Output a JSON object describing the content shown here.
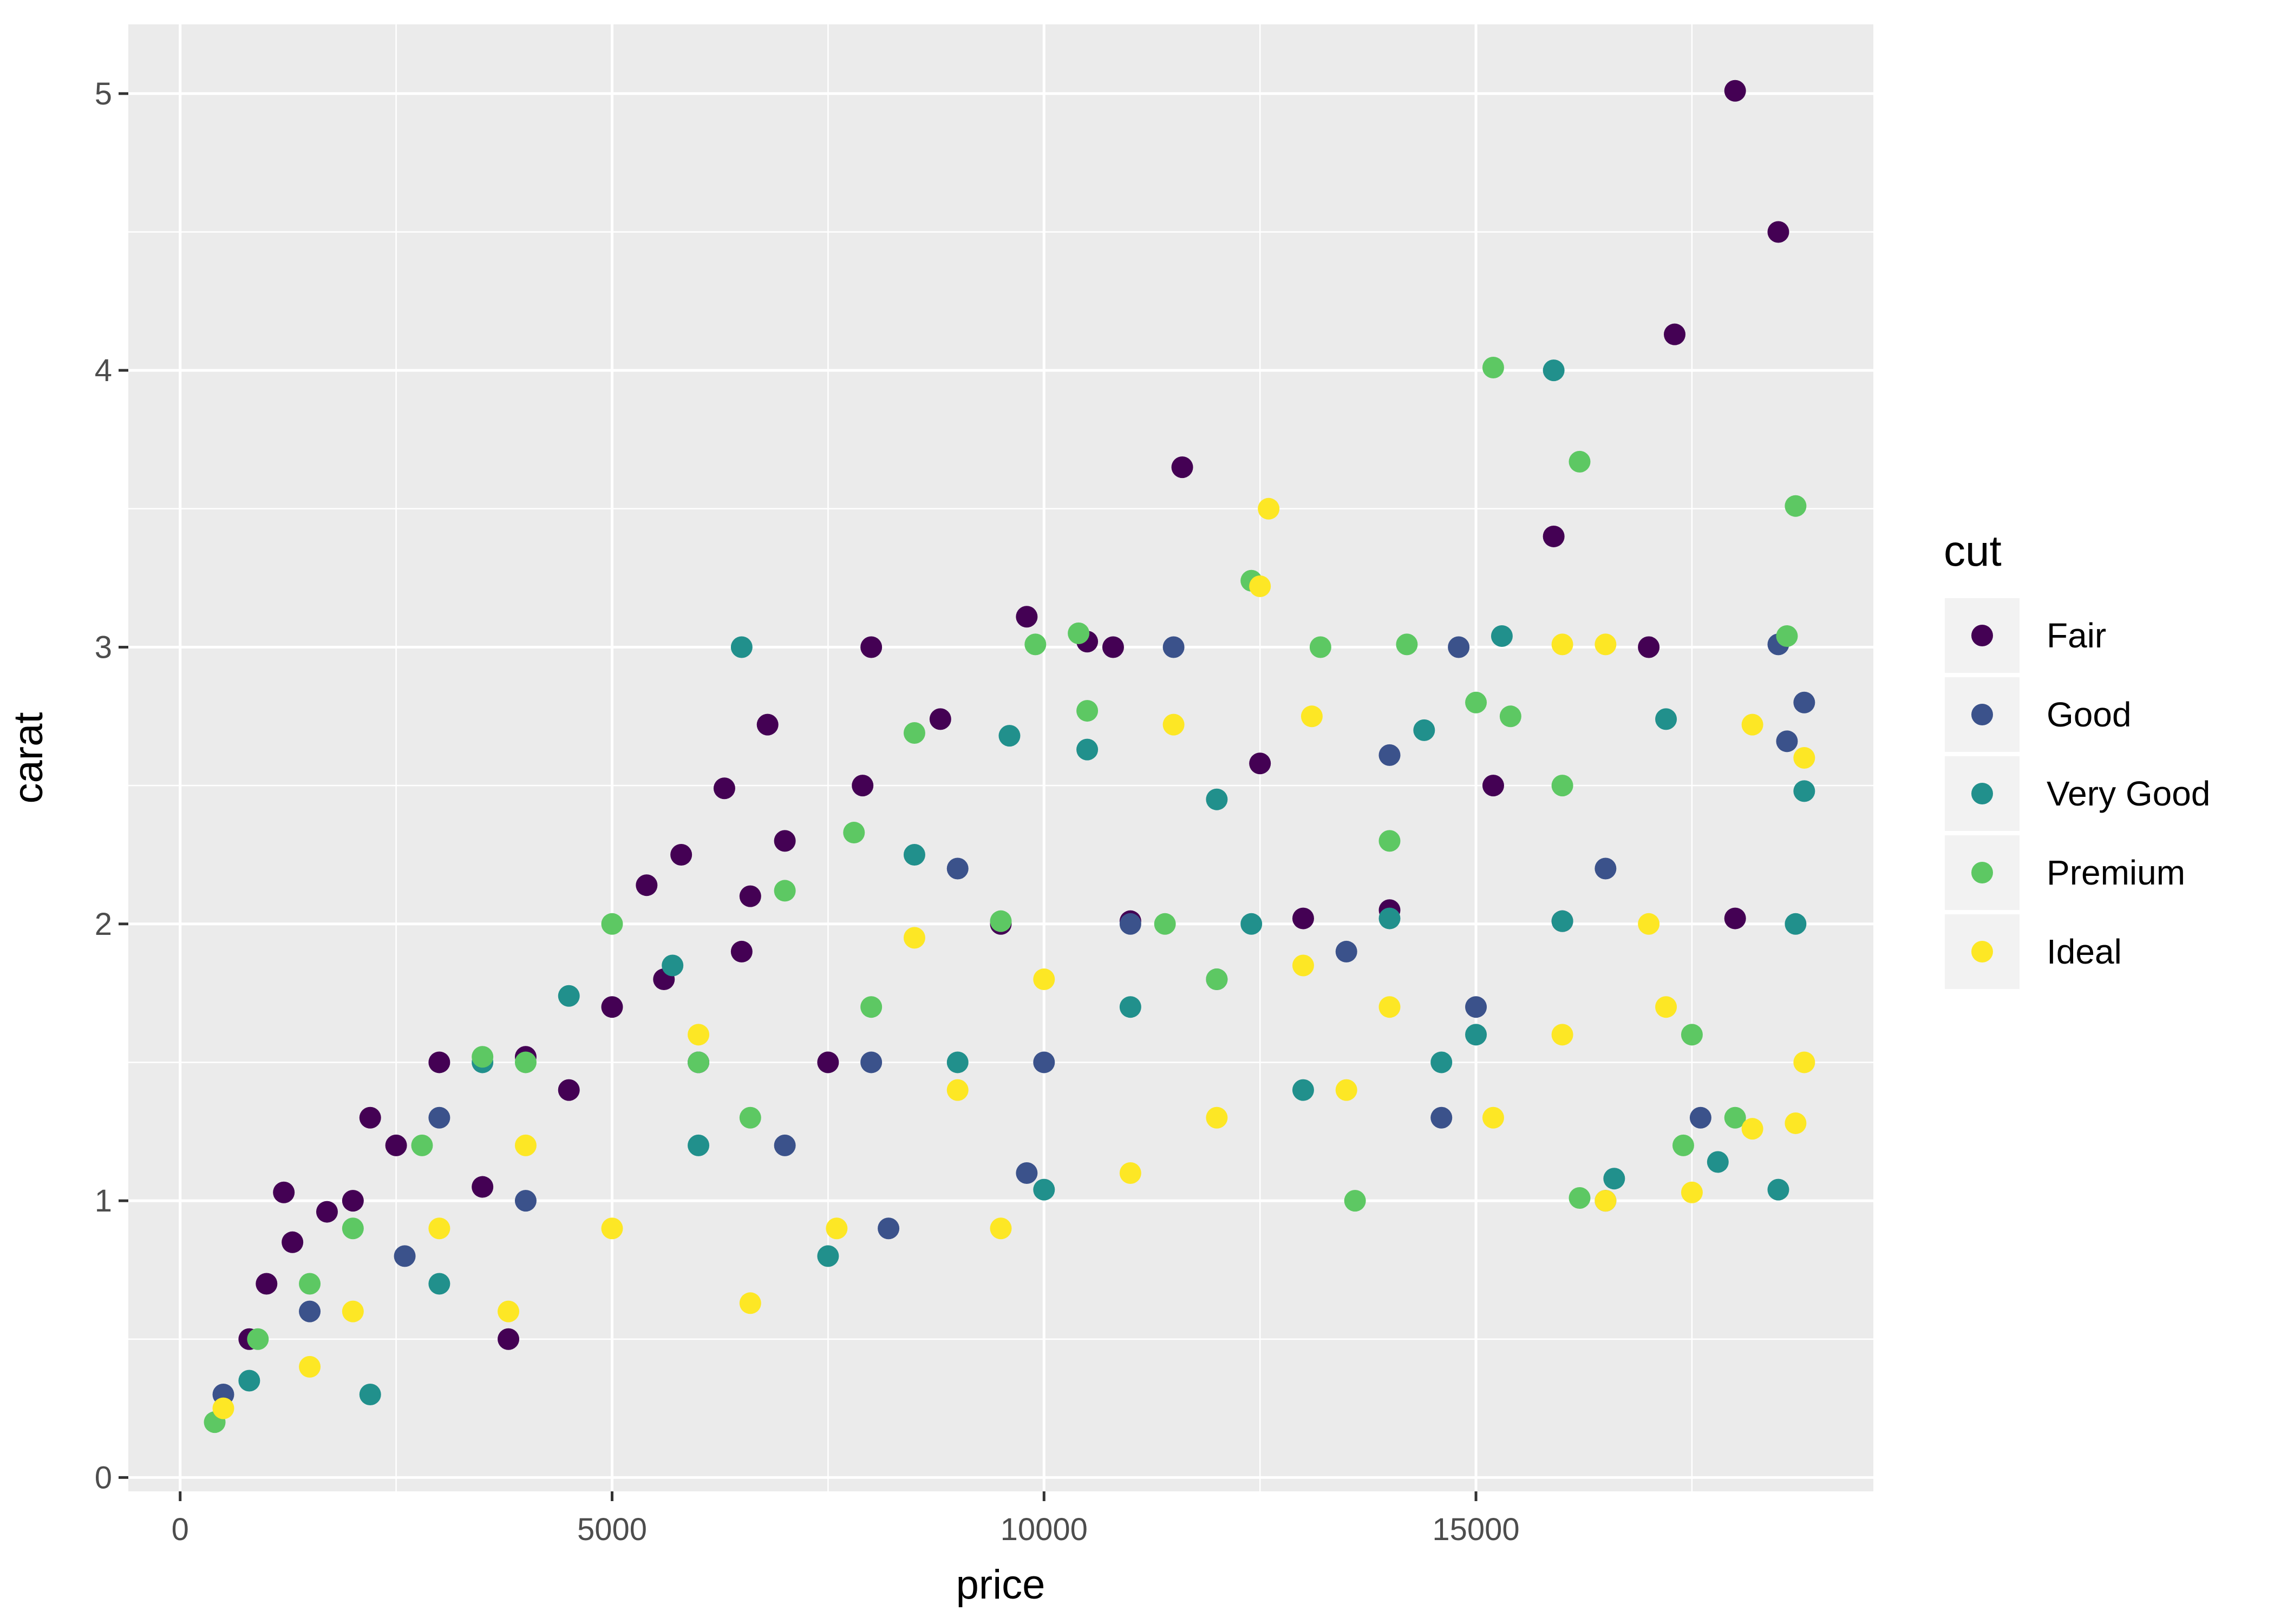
{
  "chart_data": {
    "type": "scatter",
    "title": "",
    "xlabel": "price",
    "ylabel": "carat",
    "xlim": [
      -600,
      19600
    ],
    "ylim": [
      -0.05,
      5.25
    ],
    "x_ticks": [
      0,
      5000,
      10000,
      15000
    ],
    "x_tick_labels": [
      "0",
      "5000",
      "10000",
      "15000"
    ],
    "y_ticks": [
      0,
      1,
      2,
      3,
      4,
      5
    ],
    "y_tick_labels": [
      "0",
      "1",
      "2",
      "3",
      "4",
      "5"
    ],
    "grid": true,
    "background": "#ebebeb",
    "legend": {
      "title": "cut",
      "placement": "right",
      "entries": [
        {
          "label": "Fair",
          "color": "#440154"
        },
        {
          "label": "Good",
          "color": "#3b528b"
        },
        {
          "label": "Very Good",
          "color": "#21908c"
        },
        {
          "label": "Premium",
          "color": "#5dc863"
        },
        {
          "label": "Ideal",
          "color": "#fde725"
        }
      ]
    },
    "series": [
      {
        "name": "Fair",
        "color": "#440154",
        "points": [
          [
            18000,
            5.01
          ],
          [
            18500,
            4.5
          ],
          [
            17300,
            4.13
          ],
          [
            11600,
            3.65
          ],
          [
            15900,
            3.4
          ],
          [
            9800,
            3.11
          ],
          [
            8000,
            3.0
          ],
          [
            10500,
            3.02
          ],
          [
            10800,
            3.0
          ],
          [
            6800,
            2.72
          ],
          [
            8800,
            2.74
          ],
          [
            6300,
            2.49
          ],
          [
            7000,
            2.3
          ],
          [
            5800,
            2.25
          ],
          [
            5400,
            2.14
          ],
          [
            6600,
            2.1
          ],
          [
            7900,
            2.5
          ],
          [
            12500,
            2.58
          ],
          [
            15200,
            2.5
          ],
          [
            17000,
            3.0
          ],
          [
            3000,
            1.5
          ],
          [
            4000,
            1.52
          ],
          [
            4500,
            1.4
          ],
          [
            5000,
            1.7
          ],
          [
            5600,
            1.8
          ],
          [
            2500,
            1.2
          ],
          [
            2000,
            1.0
          ],
          [
            1300,
            0.85
          ],
          [
            1000,
            0.7
          ],
          [
            800,
            0.5
          ],
          [
            3800,
            0.5
          ],
          [
            6500,
            1.9
          ],
          [
            9500,
            2.0
          ],
          [
            11000,
            2.01
          ],
          [
            13000,
            2.02
          ],
          [
            14000,
            2.05
          ],
          [
            16000,
            2.01
          ],
          [
            18000,
            2.02
          ],
          [
            6000,
            1.5
          ],
          [
            7500,
            1.5
          ],
          [
            1200,
            1.03
          ],
          [
            1700,
            0.96
          ],
          [
            2200,
            1.3
          ],
          [
            3500,
            1.05
          ]
        ]
      },
      {
        "name": "Good",
        "color": "#3b528b",
        "points": [
          [
            11500,
            3.0
          ],
          [
            14800,
            3.0
          ],
          [
            18500,
            3.01
          ],
          [
            18800,
            2.8
          ],
          [
            18600,
            2.66
          ],
          [
            14000,
            2.61
          ],
          [
            9000,
            2.2
          ],
          [
            16500,
            2.2
          ],
          [
            3000,
            1.3
          ],
          [
            4000,
            1.0
          ],
          [
            6000,
            1.5
          ],
          [
            8000,
            1.5
          ],
          [
            10000,
            1.5
          ],
          [
            12000,
            1.8
          ],
          [
            14600,
            1.3
          ],
          [
            16500,
            1.0
          ],
          [
            8200,
            0.9
          ],
          [
            1500,
            0.6
          ],
          [
            500,
            0.3
          ],
          [
            17600,
            1.3
          ],
          [
            15000,
            1.7
          ],
          [
            13500,
            1.9
          ],
          [
            11000,
            2.0
          ],
          [
            7000,
            1.2
          ],
          [
            2600,
            0.8
          ],
          [
            9800,
            1.1
          ]
        ]
      },
      {
        "name": "Very Good",
        "color": "#21908c",
        "points": [
          [
            15900,
            4.0
          ],
          [
            15300,
            3.04
          ],
          [
            6500,
            3.0
          ],
          [
            9600,
            2.68
          ],
          [
            10500,
            2.63
          ],
          [
            12000,
            2.45
          ],
          [
            14400,
            2.7
          ],
          [
            17200,
            2.74
          ],
          [
            18800,
            2.48
          ],
          [
            8500,
            2.25
          ],
          [
            5700,
            1.85
          ],
          [
            4500,
            1.74
          ],
          [
            3500,
            1.5
          ],
          [
            2200,
            0.3
          ],
          [
            7500,
            0.8
          ],
          [
            11000,
            1.7
          ],
          [
            13000,
            1.4
          ],
          [
            15000,
            1.6
          ],
          [
            17800,
            1.14
          ],
          [
            18500,
            1.04
          ],
          [
            16600,
            1.08
          ],
          [
            10000,
            1.04
          ],
          [
            6000,
            1.2
          ],
          [
            3000,
            0.7
          ],
          [
            800,
            0.35
          ],
          [
            12400,
            2.0
          ],
          [
            14000,
            2.02
          ],
          [
            16000,
            2.01
          ],
          [
            18700,
            2.0
          ],
          [
            9000,
            1.5
          ],
          [
            14600,
            1.5
          ]
        ]
      },
      {
        "name": "Premium",
        "color": "#5dc863",
        "points": [
          [
            15200,
            4.01
          ],
          [
            16200,
            3.67
          ],
          [
            18700,
            3.51
          ],
          [
            12400,
            3.24
          ],
          [
            13200,
            3.0
          ],
          [
            14200,
            3.01
          ],
          [
            9900,
            3.01
          ],
          [
            10400,
            3.05
          ],
          [
            15000,
            2.8
          ],
          [
            15400,
            2.75
          ],
          [
            8500,
            2.69
          ],
          [
            10500,
            2.77
          ],
          [
            18600,
            3.04
          ],
          [
            7000,
            2.12
          ],
          [
            5000,
            2.0
          ],
          [
            4000,
            1.5
          ],
          [
            3500,
            1.52
          ],
          [
            2800,
            1.2
          ],
          [
            2000,
            0.9
          ],
          [
            1500,
            0.7
          ],
          [
            900,
            0.5
          ],
          [
            400,
            0.2
          ],
          [
            6000,
            1.5
          ],
          [
            8000,
            1.7
          ],
          [
            12000,
            1.8
          ],
          [
            14000,
            2.3
          ],
          [
            16000,
            2.5
          ],
          [
            17500,
            1.6
          ],
          [
            18000,
            1.3
          ],
          [
            17400,
            1.2
          ],
          [
            13600,
            1.0
          ],
          [
            16200,
            1.01
          ],
          [
            9500,
            2.01
          ],
          [
            11400,
            2.0
          ],
          [
            7800,
            2.33
          ],
          [
            6600,
            1.3
          ]
        ]
      },
      {
        "name": "Ideal",
        "color": "#fde725",
        "points": [
          [
            12600,
            3.5
          ],
          [
            12500,
            3.22
          ],
          [
            16000,
            3.01
          ],
          [
            16500,
            3.01
          ],
          [
            18200,
            2.72
          ],
          [
            11500,
            2.72
          ],
          [
            13100,
            2.75
          ],
          [
            8500,
            1.95
          ],
          [
            10000,
            1.8
          ],
          [
            6000,
            1.6
          ],
          [
            4000,
            1.2
          ],
          [
            3000,
            0.9
          ],
          [
            2000,
            0.6
          ],
          [
            1500,
            0.4
          ],
          [
            500,
            0.25
          ],
          [
            6600,
            0.63
          ],
          [
            9500,
            0.9
          ],
          [
            7600,
            0.9
          ],
          [
            12000,
            1.3
          ],
          [
            13500,
            1.4
          ],
          [
            15200,
            1.3
          ],
          [
            16500,
            1.0
          ],
          [
            17500,
            1.03
          ],
          [
            18200,
            1.26
          ],
          [
            18700,
            1.28
          ],
          [
            18800,
            1.5
          ],
          [
            17200,
            1.7
          ],
          [
            16000,
            1.6
          ],
          [
            14000,
            1.7
          ],
          [
            18800,
            2.6
          ],
          [
            17000,
            2.0
          ],
          [
            13000,
            1.85
          ],
          [
            11000,
            1.1
          ],
          [
            9000,
            1.4
          ],
          [
            5000,
            0.9
          ],
          [
            3800,
            0.6
          ]
        ]
      }
    ]
  }
}
